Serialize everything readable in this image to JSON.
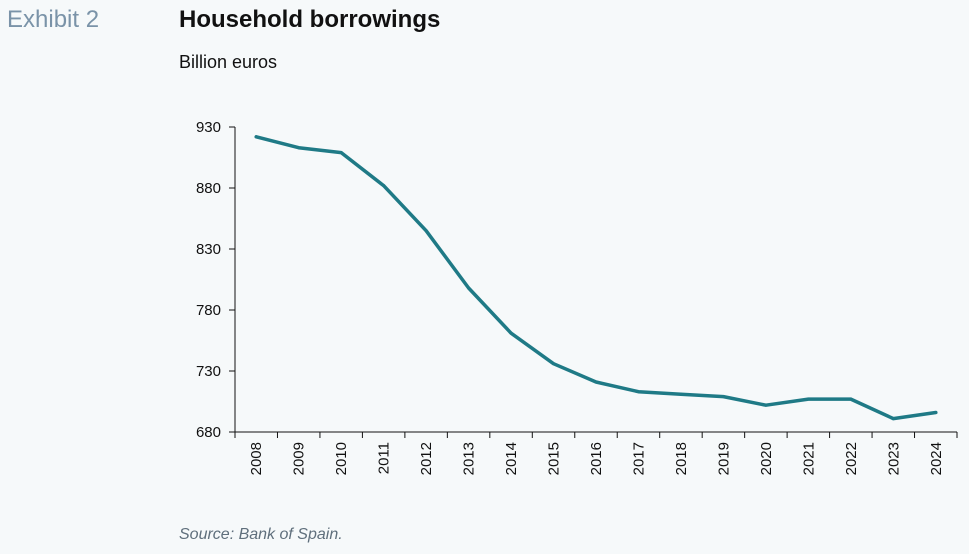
{
  "header": {
    "exhibit_label": "Exhibit 2",
    "title": "Household borrowings",
    "subtitle": "Billion euros"
  },
  "footer": {
    "source": "Source: Bank of Spain."
  },
  "colors": {
    "line": "#1f7a86",
    "axis": "#111111",
    "exhibit": "#7a93a8",
    "background": "#f6f9fa"
  },
  "chart_data": {
    "type": "line",
    "title": "Household borrowings",
    "subtitle": "Billion euros",
    "xlabel": "",
    "ylabel": "",
    "ylim": [
      680,
      930
    ],
    "yticks": [
      680,
      730,
      780,
      830,
      880,
      930
    ],
    "grid": false,
    "legend": "none",
    "categories": [
      "2008",
      "2009",
      "2010",
      "2011",
      "2012",
      "2013",
      "2014",
      "2015",
      "2016",
      "2017",
      "2018",
      "2019",
      "2020",
      "2021",
      "2022",
      "2023",
      "2024"
    ],
    "series": [
      {
        "values": [
          922,
          913,
          909,
          882,
          845,
          798,
          761,
          736,
          721,
          713,
          711,
          709,
          702,
          707,
          707,
          691,
          696
        ]
      }
    ]
  }
}
